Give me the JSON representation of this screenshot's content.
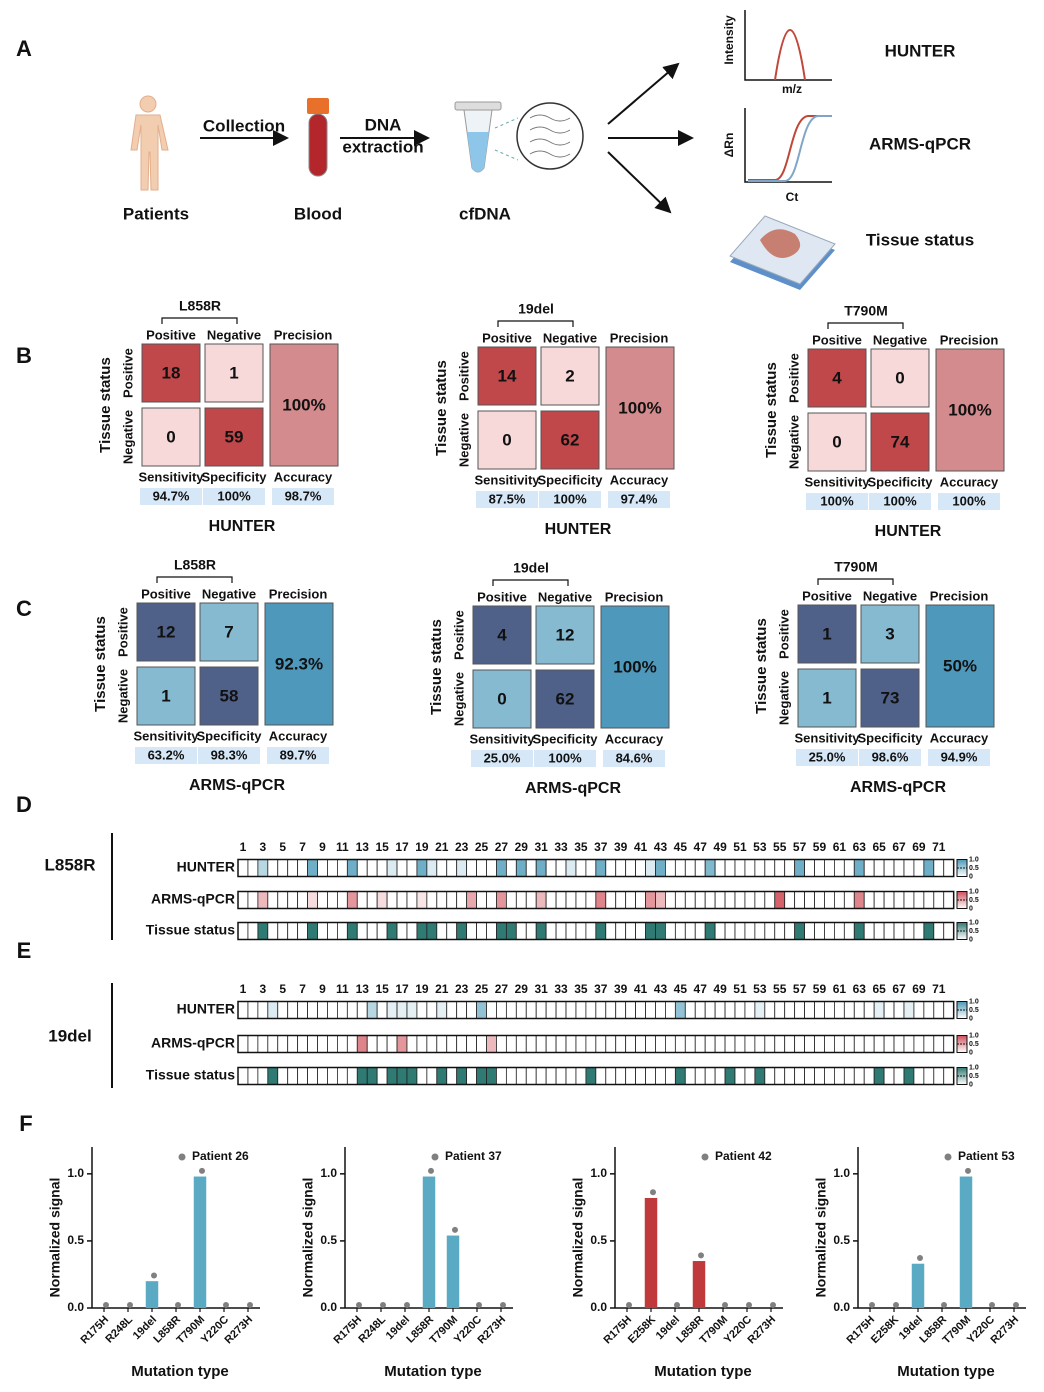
{
  "panel_labels": [
    "A",
    "B",
    "C",
    "D",
    "E",
    "F"
  ],
  "panel_a": {
    "patients": "Patients",
    "collection": "Collection",
    "blood": "Blood",
    "dna": "DNA",
    "extraction": "extraction",
    "cfdna": "cfDNA",
    "methods": [
      "HUNTER",
      "ARMS-qPCR",
      "Tissue status"
    ],
    "intensity": "Intensity",
    "mz": "m/z",
    "delta_rn": "ΔRn",
    "ct": "Ct"
  },
  "matrix_labels": {
    "positive": "Positive",
    "negative": "Negative",
    "precision": "Precision",
    "sensitivity": "Sensitivity",
    "specificity": "Specificity",
    "accuracy": "Accuracy",
    "tissue_status": "Tissue status"
  },
  "panel_b": {
    "colors": {
      "diagonal": "#c0474a",
      "off_diagonal": "#f7d9da",
      "precision": "#d48b8d",
      "cell_text": "#ffffff"
    },
    "matrices": [
      {
        "mutation": "L858R",
        "cells": [
          [
            18,
            1
          ],
          [
            0,
            59
          ]
        ],
        "precision": "100%",
        "sensitivity": "94.7%",
        "specificity": "100%",
        "accuracy": "98.7%",
        "method": "HUNTER"
      },
      {
        "mutation": "19del",
        "cells": [
          [
            14,
            2
          ],
          [
            0,
            62
          ]
        ],
        "precision": "100%",
        "sensitivity": "87.5%",
        "specificity": "100%",
        "accuracy": "97.4%",
        "method": "HUNTER"
      },
      {
        "mutation": "T790M",
        "cells": [
          [
            4,
            0
          ],
          [
            0,
            74
          ]
        ],
        "precision": "100%",
        "sensitivity": "100%",
        "specificity": "100%",
        "accuracy": "100%",
        "method": "HUNTER"
      }
    ]
  },
  "panel_c": {
    "colors": {
      "diagonal": "#4f6189",
      "off_diagonal": "#86bad1",
      "precision": "#4e98bb",
      "cell_text": "#ffffff"
    },
    "matrices": [
      {
        "mutation": "L858R",
        "cells": [
          [
            12,
            7
          ],
          [
            1,
            58
          ]
        ],
        "precision": "92.3%",
        "sensitivity": "63.2%",
        "specificity": "98.3%",
        "accuracy": "89.7%",
        "method": "ARMS-qPCR"
      },
      {
        "mutation": "19del",
        "cells": [
          [
            4,
            12
          ],
          [
            0,
            62
          ]
        ],
        "precision": "100%",
        "sensitivity": "25.0%",
        "specificity": "100%",
        "accuracy": "84.6%",
        "method": "ARMS-qPCR"
      },
      {
        "mutation": "T790M",
        "cells": [
          [
            1,
            3
          ],
          [
            1,
            73
          ]
        ],
        "precision": "50%",
        "sensitivity": "25.0%",
        "specificity": "98.6%",
        "accuracy": "94.9%",
        "method": "ARMS-qPCR"
      }
    ]
  },
  "heatmaps": [
    {
      "mutation": "L858R",
      "column_labels": [
        1,
        3,
        5,
        7,
        9,
        11,
        13,
        15,
        17,
        19,
        21,
        23,
        25,
        27,
        29,
        31,
        33,
        35,
        37,
        39,
        41,
        43,
        45,
        47,
        49,
        51,
        53,
        55,
        57,
        59,
        61,
        63,
        65,
        67,
        69,
        71
      ],
      "colorbar_ticks": [
        {
          "value": 1,
          "label": "1.0"
        },
        0.5,
        0
      ],
      "rows": [
        {
          "name": "HUNTER",
          "color": "#4a9ab8",
          "values": [
            0,
            0,
            0.4,
            0,
            0,
            0,
            0,
            0.8,
            0,
            0,
            0,
            0.8,
            0,
            0,
            0,
            0.2,
            0,
            0,
            0.8,
            0.2,
            0,
            0,
            0.2,
            0,
            0,
            0,
            0.8,
            0,
            0.8,
            0,
            0.8,
            0,
            0,
            0.2,
            0,
            0,
            0.8,
            0,
            0,
            0,
            0,
            0.2,
            0.8,
            0,
            0,
            0,
            0,
            0.7,
            0,
            0,
            0,
            0,
            0,
            0,
            0,
            0,
            0.8,
            0,
            0,
            0,
            0,
            0,
            0.8,
            0,
            0,
            0,
            0,
            0,
            0,
            0.8,
            0,
            0
          ]
        },
        {
          "name": "ARMS-qPCR",
          "color": "#d0505a",
          "values": [
            0,
            0,
            0.4,
            0,
            0,
            0,
            0,
            0.2,
            0,
            0,
            0,
            0.6,
            0,
            0,
            0.2,
            0,
            0,
            0,
            0.15,
            0,
            0,
            0,
            0,
            0.5,
            0,
            0,
            0.6,
            0,
            0,
            0,
            0.4,
            0,
            0,
            0,
            0,
            0,
            0.7,
            0,
            0,
            0,
            0,
            0.6,
            0.4,
            0,
            0,
            0,
            0,
            0,
            0,
            0,
            0,
            0,
            0,
            0,
            0.9,
            0,
            0,
            0,
            0,
            0,
            0,
            0,
            0.7,
            0,
            0,
            0,
            0,
            0,
            0,
            0,
            0,
            0
          ]
        },
        {
          "name": "Tissue status",
          "color": "#2f7a72",
          "values": [
            0,
            0,
            1,
            0,
            0,
            0,
            0,
            1,
            0,
            0,
            0,
            1,
            0,
            0,
            0,
            1,
            0,
            0,
            1,
            1,
            0,
            0,
            1,
            0,
            0,
            0,
            1,
            1,
            0,
            0,
            1,
            0,
            0,
            0,
            0,
            0,
            1,
            0,
            0,
            0,
            0,
            1,
            1,
            0,
            0,
            0,
            0,
            1,
            0,
            0,
            0,
            0,
            0,
            0,
            0,
            0,
            1,
            0,
            0,
            0,
            0,
            0,
            1,
            0,
            0,
            0,
            0,
            0,
            0,
            1,
            0,
            0
          ]
        }
      ]
    },
    {
      "mutation": "19del",
      "column_labels": [
        1,
        3,
        5,
        7,
        9,
        11,
        13,
        15,
        17,
        19,
        21,
        23,
        25,
        27,
        29,
        31,
        33,
        35,
        37,
        39,
        41,
        43,
        45,
        47,
        49,
        51,
        53,
        55,
        57,
        59,
        61,
        63,
        65,
        67,
        69,
        71
      ],
      "colorbar_ticks": [
        {
          "value": 1,
          "label": "1.0"
        },
        0.5,
        0
      ],
      "rows": [
        {
          "name": "HUNTER",
          "color": "#4a9ab8",
          "values": [
            0,
            0,
            0,
            0.2,
            0,
            0,
            0,
            0,
            0,
            0,
            0,
            0,
            0,
            0.4,
            0,
            0.15,
            0.15,
            0.15,
            0,
            0,
            0.15,
            0,
            0,
            0,
            0.6,
            0,
            0,
            0,
            0,
            0,
            0,
            0,
            0,
            0,
            0,
            0,
            0,
            0,
            0,
            0,
            0,
            0,
            0,
            0,
            0.6,
            0,
            0,
            0,
            0,
            0,
            0,
            0,
            0.15,
            0,
            0,
            0,
            0,
            0,
            0,
            0,
            0,
            0,
            0,
            0,
            0.15,
            0,
            0,
            0.15,
            0,
            0,
            0,
            0
          ]
        },
        {
          "name": "ARMS-qPCR",
          "color": "#d0505a",
          "values": [
            0,
            0,
            0,
            0,
            0,
            0,
            0,
            0,
            0,
            0,
            0,
            0,
            0.7,
            0,
            0,
            0,
            0.6,
            0,
            0,
            0,
            0,
            0,
            0,
            0,
            0,
            0.4,
            0,
            0,
            0,
            0,
            0,
            0,
            0,
            0,
            0,
            0,
            0,
            0,
            0,
            0,
            0,
            0,
            0,
            0,
            0,
            0,
            0,
            0,
            0,
            0,
            0,
            0,
            0,
            0,
            0,
            0,
            0,
            0,
            0,
            0,
            0,
            0,
            0,
            0,
            0,
            0,
            0,
            0,
            0,
            0,
            0,
            0
          ]
        },
        {
          "name": "Tissue status",
          "color": "#2f7a72",
          "values": [
            0,
            0,
            0,
            1,
            0,
            0,
            0,
            0,
            0,
            0,
            0,
            0,
            1,
            1,
            0,
            1,
            1,
            1,
            0,
            0,
            1,
            0,
            1,
            0,
            1,
            1,
            0,
            0,
            0,
            0,
            0,
            0,
            0,
            0,
            0,
            1,
            0,
            0,
            0,
            0,
            0,
            0,
            0,
            0,
            1,
            0,
            0,
            0,
            0,
            1,
            0,
            0,
            1,
            0,
            0,
            0,
            0,
            0,
            0,
            0,
            0,
            0,
            0,
            0,
            1,
            0,
            0,
            1,
            0,
            0,
            0,
            0
          ]
        }
      ]
    }
  ],
  "chart_data": [
    {
      "type": "bar",
      "categories": [
        "R175H",
        "R248L",
        "19del",
        "L858R",
        "T790M",
        "Y220C",
        "R273H"
      ],
      "values": [
        0,
        0,
        0.2,
        0,
        0.98,
        0,
        0
      ],
      "color": "#5aaac4",
      "points": {
        "name": "Patient 26",
        "color": "#808080",
        "values": [
          0,
          0,
          0.22,
          0,
          1.0,
          0,
          0
        ]
      },
      "ylabel": "Normalized signal",
      "xlabel": "Mutation type",
      "ylim": [
        0,
        1.2
      ],
      "yticks": [
        {
          "value": 0,
          "label": "0.0"
        },
        0.5,
        {
          "value": 1,
          "label": "1.0"
        }
      ]
    },
    {
      "type": "bar",
      "categories": [
        "R175H",
        "R248L",
        "19del",
        "L858R",
        "T790M",
        "Y220C",
        "R273H"
      ],
      "values": [
        0,
        0,
        0,
        0.98,
        0.54,
        0,
        0
      ],
      "color": "#5aaac4",
      "points": {
        "name": "Patient 37",
        "color": "#808080",
        "values": [
          0,
          0,
          0,
          1.0,
          0.56,
          0,
          0
        ]
      },
      "ylabel": "Normalized signal",
      "xlabel": "Mutation type",
      "ylim": [
        0,
        1.2
      ],
      "yticks": [
        {
          "value": 0,
          "label": "0.0"
        },
        0.5,
        {
          "value": 1,
          "label": "1.0"
        }
      ]
    },
    {
      "type": "bar",
      "categories": [
        "R175H",
        "E258K",
        "19del",
        "L858R",
        "T790M",
        "Y220C",
        "R273H"
      ],
      "values": [
        0,
        0.82,
        0,
        0.35,
        0,
        0,
        0
      ],
      "color": "#c0393b",
      "points": {
        "name": "Patient 42",
        "color": "#808080",
        "values": [
          0,
          0.84,
          0,
          0.37,
          0,
          0,
          0
        ]
      },
      "ylabel": "Normalized signal",
      "xlabel": "Mutation type",
      "ylim": [
        0,
        1.2
      ],
      "yticks": [
        {
          "value": 0,
          "label": "0.0"
        },
        0.5,
        {
          "value": 1,
          "label": "1.0"
        }
      ]
    },
    {
      "type": "bar",
      "categories": [
        "R175H",
        "E258K",
        "19del",
        "L858R",
        "T790M",
        "Y220C",
        "R273H"
      ],
      "values": [
        0,
        0,
        0.33,
        0,
        0.98,
        0,
        0
      ],
      "color": "#5aaac4",
      "points": {
        "name": "Patient 53",
        "color": "#808080",
        "values": [
          0,
          0,
          0.35,
          0,
          1.0,
          0,
          0
        ]
      },
      "ylabel": "Normalized signal",
      "xlabel": "Mutation type",
      "ylim": [
        0,
        1.2
      ],
      "yticks": [
        {
          "value": 0,
          "label": "0.0"
        },
        0.5,
        {
          "value": 1,
          "label": "1.0"
        }
      ]
    }
  ]
}
